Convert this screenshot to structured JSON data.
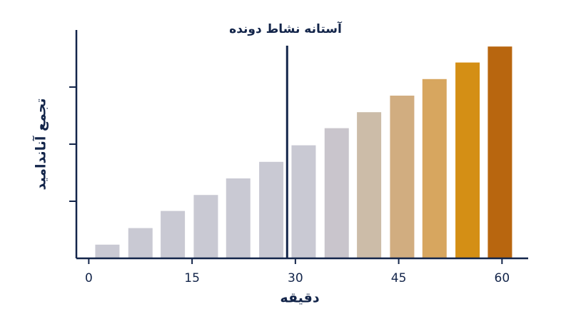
{
  "chart_data": {
    "type": "bar",
    "x": [
      2.7,
      7.5,
      12.2,
      17.0,
      21.7,
      26.5,
      31.2,
      36.0,
      40.7,
      45.5,
      50.2,
      55.0,
      59.7
    ],
    "values": [
      0.24,
      0.53,
      0.83,
      1.11,
      1.4,
      1.69,
      1.98,
      2.28,
      2.56,
      2.85,
      3.14,
      3.43,
      3.71
    ],
    "colors": [
      "#c9c9d3",
      "#c9c9d3",
      "#c9c9d3",
      "#c9c9d3",
      "#c9c9d3",
      "#c9c9d3",
      "#c9c9d3",
      "#c9c5cc",
      "#ccbca8",
      "#d1ad80",
      "#d7a65f",
      "#d48f15",
      "#b8660f"
    ],
    "xlabel": "دقیقه",
    "ylabel": "تجمع آناندامید",
    "xlim": [
      -1.8,
      63.8
    ],
    "xticks": [
      0,
      15,
      30,
      45,
      60
    ],
    "ylim": [
      0,
      4
    ],
    "yticks": [
      1,
      2,
      3
    ],
    "threshold": {
      "x": 28.8,
      "label": "آستانه نشاط دونده"
    },
    "axis_color": "#13254a"
  }
}
